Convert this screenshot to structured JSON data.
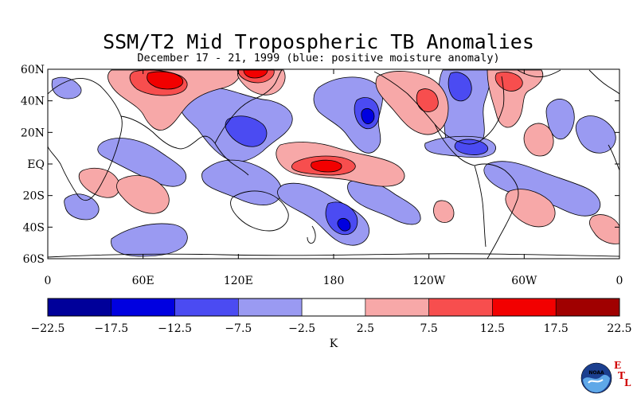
{
  "header": {
    "title": "SSM/T2 Mid Tropospheric TB Anomalies",
    "subtitle": "December 17 - 21, 1999 (blue: positive moisture anomaly)"
  },
  "map": {
    "lat_labels": [
      "60N",
      "40N",
      "20N",
      "EQ",
      "20S",
      "40S",
      "60S"
    ],
    "lon_labels": [
      "0",
      "60E",
      "120E",
      "180",
      "120W",
      "60W",
      "0"
    ],
    "lat_range": [
      -60,
      60
    ],
    "lon_range": [
      0,
      360
    ]
  },
  "colorbar": {
    "unit": "K",
    "tick_labels": [
      "-22.5",
      "-17.5",
      "-12.5",
      "-7.5",
      "-2.5",
      "2.5",
      "7.5",
      "12.5",
      "17.5",
      "22.5"
    ],
    "colors": [
      "#00009a",
      "#0000e0",
      "#4b4bf2",
      "#9a9af2",
      "#ffffff",
      "#f7a8a8",
      "#f74e4e",
      "#f20000",
      "#a00000"
    ]
  },
  "logo": {
    "org": "NOAA",
    "letters": [
      "E",
      "T",
      "L"
    ]
  }
}
